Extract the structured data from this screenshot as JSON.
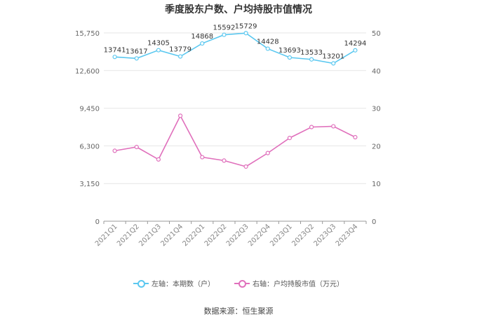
{
  "title": "季度股东户数、户均持股市值情况",
  "source": "数据来源：恒生聚源",
  "chart_data": {
    "type": "line",
    "categories": [
      "2021Q1",
      "2021Q2",
      "2021Q3",
      "2021Q4",
      "2022Q1",
      "2022Q2",
      "2022Q3",
      "2022Q4",
      "2023Q1",
      "2023Q2",
      "2023Q3",
      "2023Q4"
    ],
    "series": [
      {
        "name": "左轴：本期数（户）",
        "axis": "left",
        "color": "#5BC8F0",
        "values": [
          13741,
          13617,
          14305,
          13779,
          14868,
          15592,
          15729,
          14428,
          13693,
          13533,
          13201,
          14294
        ],
        "labels": [
          "13741",
          "13617",
          "14305",
          "13779",
          "14868",
          "15592",
          "15729",
          "14428",
          "13693",
          "13533",
          "13201",
          "14294"
        ]
      },
      {
        "name": "右轴：户均持股市值（万元）",
        "axis": "right",
        "color": "#E070BC",
        "values": [
          18.7,
          19.7,
          16.4,
          28.0,
          17.0,
          16.1,
          14.5,
          18.1,
          22.1,
          25.0,
          25.2,
          22.3
        ]
      }
    ],
    "y_left": {
      "min": 0,
      "max": 15750,
      "ticks": [
        0,
        3150,
        6300,
        9450,
        12600,
        15750
      ],
      "tick_labels": [
        "0",
        "3,150",
        "6,300",
        "9,450",
        "12,600",
        "15,750"
      ]
    },
    "y_right": {
      "min": 0,
      "max": 50,
      "ticks": [
        0,
        10,
        20,
        30,
        40,
        50
      ],
      "tick_labels": [
        "0",
        "10",
        "20",
        "30",
        "40",
        "50"
      ]
    },
    "grid": true,
    "legend": "bottom-center",
    "gridColor": "#e6e6e6",
    "axisColor": "#999999"
  }
}
